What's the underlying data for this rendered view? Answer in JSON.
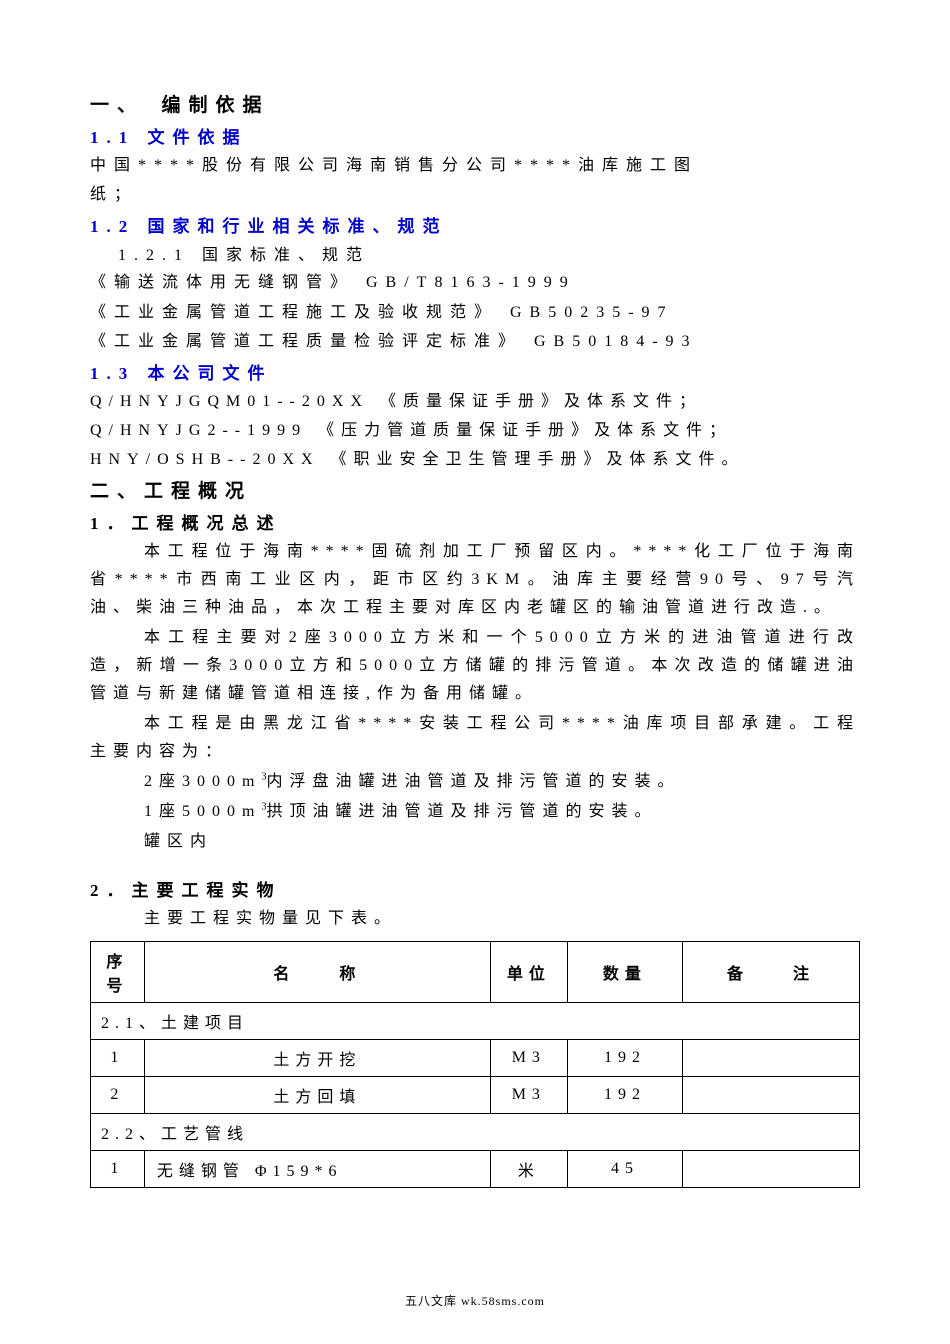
{
  "section1": {
    "title": "一、　编制依据",
    "sub1_1": {
      "title": "1.1 文件依据",
      "line1": "中国****股份有限公司海南销售分公司****油库施工图",
      "line2": "纸；"
    },
    "sub1_2": {
      "title": "1.2 国家和行业相关标准、规范",
      "sub1_2_1": "1.2.1 国家标准、规范",
      "std1": "《输送流体用无缝钢管》 GB/T8163-1999",
      "std2": "《工业金属管道工程施工及验收规范》 GB50235-97",
      "std3": "《工业金属管道工程质量检验评定标准》 GB50184-93"
    },
    "sub1_3": {
      "title": "1.3 本公司文件",
      "doc1": "Q/HNYJGQM01--20XX 《质量保证手册》及体系文件；",
      "doc2": "Q/HNYJG2--1999 《压力管道质量保证手册》及体系文件；",
      "doc3": "HNY/OSHB--20XX 《职业安全卫生管理手册》及体系文件。"
    }
  },
  "section2": {
    "title": "二、工程概况",
    "sub2_1": {
      "title": "1．工程概况总述",
      "p1": "本工程位于海南****固硫剂加工厂预留区内。****化工厂位于海南省****市西南工业区内，距市区约3KM。油库主要经营90号、97号汽油、柴油三种油品，本次工程主要对库区内老罐区的输油管道进行改造.。",
      "p2": "本工程主要对2座3000立方米和一个5000立方米的进油管道进行改造，新增一条3000立方和5000立方储罐的排污管道。本次改造的储罐进油管道与新建储罐管道相连接,作为备用储罐。",
      "p3": "本工程是由黑龙江省****安装工程公司****油库项目部承建。工程主要内容为：",
      "item1_a": "2座3000m",
      "item1_b": "内浮盘油罐进油管道及排污管道的安装。",
      "item2_a": "1座5000m",
      "item2_b": "拱顶油罐进油管道及排污管道的安装。",
      "item3": "罐区内"
    },
    "sub2_2": {
      "title": "2．主要工程实物",
      "intro": "主要工程实物量见下表。"
    }
  },
  "table": {
    "headers": {
      "seq": "序号",
      "name": "名　　称",
      "unit": "单位",
      "qty": "数量",
      "note": "备　　注"
    },
    "section1_label": "2.1、土建项目",
    "section2_label": "2.2、工艺管线",
    "rows": [
      {
        "seq": "1",
        "name": "土方开挖",
        "unit": "M3",
        "qty": "192",
        "note": ""
      },
      {
        "seq": "2",
        "name": "土方回填",
        "unit": "M3",
        "qty": "192",
        "note": ""
      }
    ],
    "rows2": [
      {
        "seq": "1",
        "name": "无缝钢管 Φ159*6",
        "unit": "米",
        "qty": "45",
        "note": ""
      }
    ]
  },
  "footer": "五八文库 wk.58sms.com",
  "sup3": "3"
}
